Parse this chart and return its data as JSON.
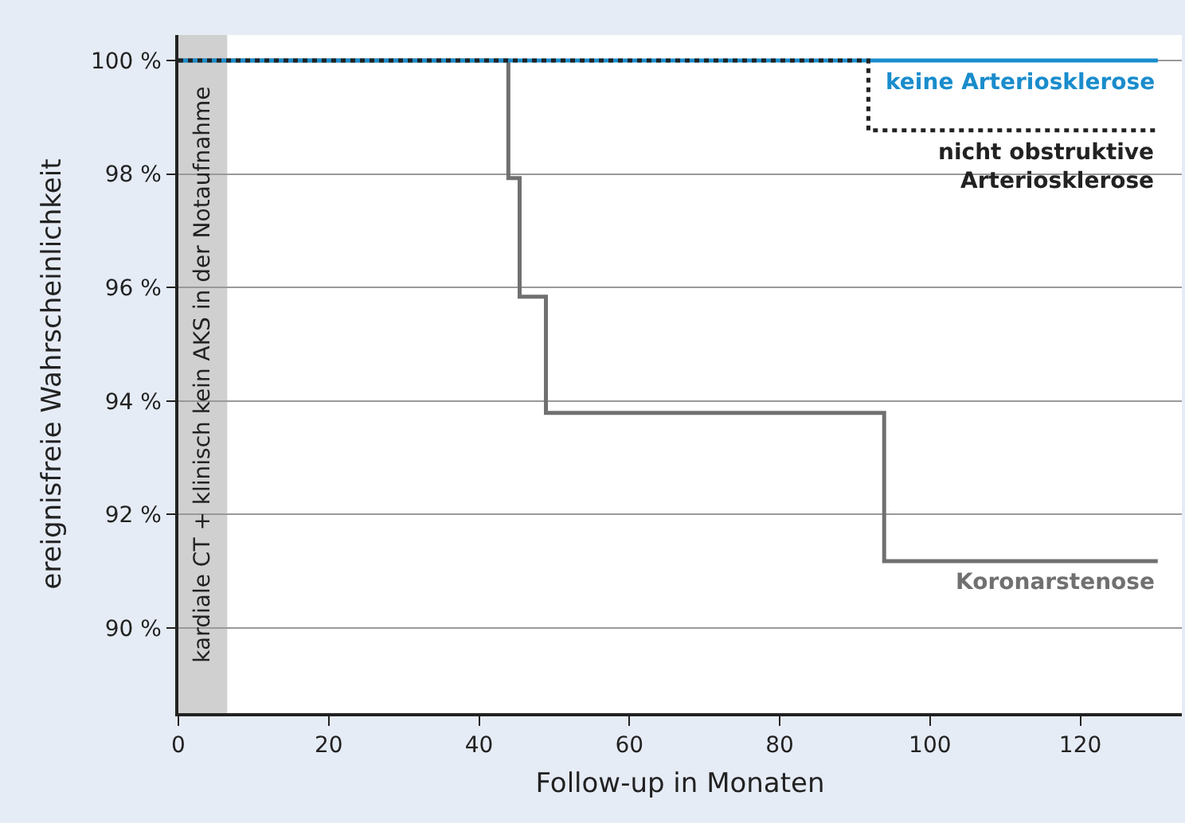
{
  "chart_data": {
    "type": "step",
    "xlabel": "Follow-up in Monaten",
    "ylabel": "ereignisfreie Wahrscheinlichkeit",
    "xlim": [
      0,
      133.5
    ],
    "xticks": [
      0,
      20,
      40,
      60,
      80,
      100,
      120
    ],
    "ylim": [
      88.5,
      100.45
    ],
    "yticks": [
      {
        "value": 90,
        "label": "90 %"
      },
      {
        "value": 92,
        "label": "92 %"
      },
      {
        "value": 94,
        "label": "94 %"
      },
      {
        "value": 96,
        "label": "96 %"
      },
      {
        "value": 98,
        "label": "98 %"
      },
      {
        "value": 100,
        "label": "100 %"
      }
    ],
    "grid": "y",
    "legend": false,
    "series": [
      {
        "name": "Koronarstenose",
        "color": "#707070",
        "line_style": "solid",
        "x": [
          0,
          43.9,
          45.4,
          48.9,
          93.9,
          130.3
        ],
        "values": [
          100,
          97.93,
          95.84,
          93.79,
          91.18,
          91.18
        ]
      },
      {
        "name": "keine Arteriosklerose",
        "color": "#1a8ccc",
        "line_style": "solid",
        "x": [
          0,
          130.3
        ],
        "values": [
          100,
          100
        ]
      },
      {
        "name": "nicht obstruktive Arteriosklerose",
        "color": "#222222",
        "line_style": "dotted",
        "x": [
          0,
          91.8,
          130.3
        ],
        "values": [
          100,
          98.77,
          98.77
        ]
      }
    ],
    "bands": [
      {
        "axis": "x",
        "from": 0,
        "to": 6.5,
        "label": "kardiale CT + klinisch kein AKS in der Notaufnahme",
        "color": "#d0d0d0"
      }
    ]
  }
}
